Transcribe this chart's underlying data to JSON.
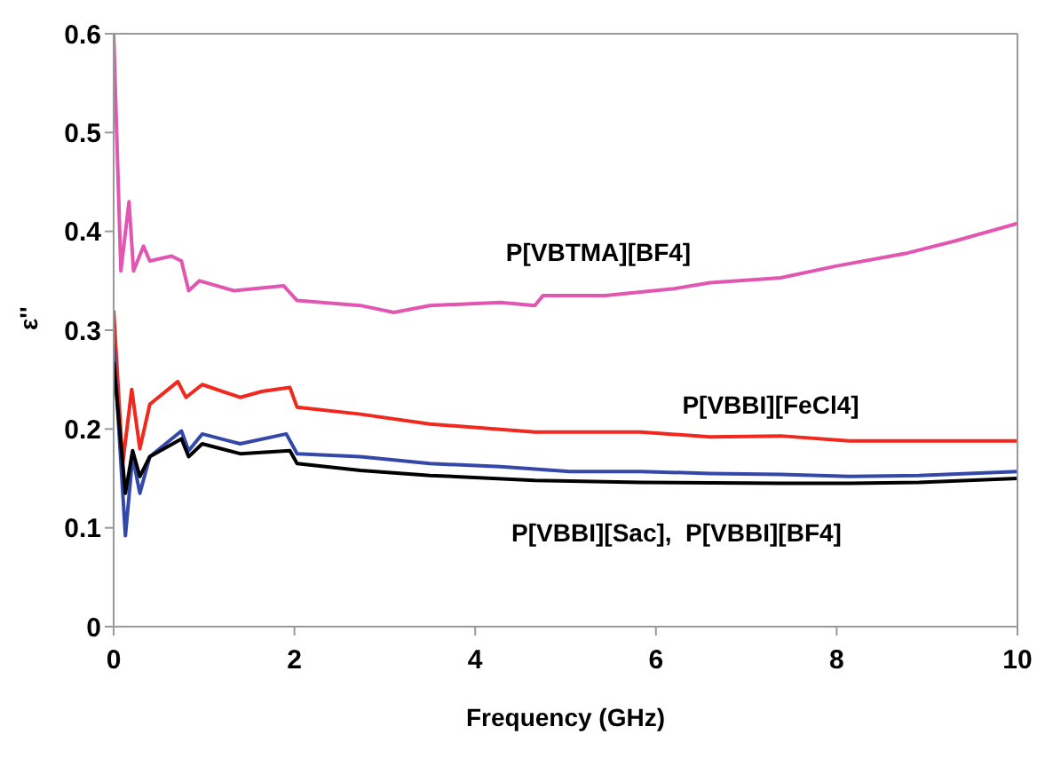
{
  "chart_data": {
    "type": "line",
    "xlabel": "Frequency (GHz)",
    "ylabel": "ε''",
    "xlim": [
      0,
      10
    ],
    "xticks": [
      0,
      2,
      4,
      6,
      8,
      10
    ],
    "ylim": [
      0,
      0.6
    ],
    "yticks": [
      0,
      0.1,
      0.2,
      0.3,
      0.4,
      0.5,
      0.6
    ],
    "grid": false,
    "legend": false,
    "marker": "none",
    "line_style": "solid",
    "series": [
      {
        "color": "#e056b0",
        "x": [
          0,
          0.08,
          0.17,
          0.22,
          0.33,
          0.4,
          0.64,
          0.75,
          0.83,
          0.95,
          1.33,
          1.88,
          2.03,
          2.73,
          3.1,
          3.5,
          4.28,
          4.66,
          4.75,
          5.44,
          6.2,
          6.6,
          7.38,
          8,
          8.78,
          9.3,
          10
        ],
        "values": [
          0.6,
          0.36,
          0.43,
          0.36,
          0.385,
          0.37,
          0.375,
          0.37,
          0.34,
          0.35,
          0.34,
          0.345,
          0.33,
          0.325,
          0.318,
          0.325,
          0.328,
          0.325,
          0.335,
          0.335,
          0.342,
          0.348,
          0.353,
          0.365,
          0.378,
          0.39,
          0.408
        ]
      },
      {
        "color": "#f0281e",
        "x": [
          0,
          0.1,
          0.2,
          0.29,
          0.4,
          0.71,
          0.8,
          0.98,
          1.4,
          1.64,
          1.95,
          2.03,
          2.73,
          3.5,
          4.66,
          5.83,
          6.6,
          7.38,
          8.14,
          8.91,
          10
        ],
        "values": [
          0.32,
          0.165,
          0.24,
          0.18,
          0.225,
          0.248,
          0.232,
          0.245,
          0.232,
          0.238,
          0.242,
          0.222,
          0.215,
          0.205,
          0.197,
          0.197,
          0.192,
          0.193,
          0.188,
          0.188,
          0.188
        ]
      },
      {
        "color": "#3348a8",
        "x": [
          0,
          0.13,
          0.21,
          0.29,
          0.4,
          0.75,
          0.83,
          0.98,
          1.4,
          1.91,
          2.03,
          2.73,
          3.5,
          4.28,
          5.05,
          5.83,
          6.6,
          7.38,
          8.14,
          8.91,
          10
        ],
        "values": [
          0.285,
          0.092,
          0.172,
          0.135,
          0.172,
          0.198,
          0.178,
          0.195,
          0.185,
          0.195,
          0.175,
          0.172,
          0.165,
          0.162,
          0.157,
          0.157,
          0.155,
          0.154,
          0.152,
          0.153,
          0.157
        ]
      },
      {
        "color": "#000000",
        "x": [
          0,
          0.13,
          0.21,
          0.29,
          0.4,
          0.75,
          0.83,
          0.98,
          1.4,
          1.95,
          2.03,
          2.73,
          3.5,
          4.66,
          5.83,
          7.38,
          8.14,
          8.91,
          10
        ],
        "values": [
          0.268,
          0.135,
          0.178,
          0.152,
          0.172,
          0.19,
          0.172,
          0.185,
          0.175,
          0.178,
          0.165,
          0.158,
          0.153,
          0.148,
          0.146,
          0.145,
          0.145,
          0.146,
          0.15
        ]
      }
    ],
    "annotations": [
      "P[VBTMA][BF4]",
      "P[VBBI][FeCl4]",
      "P[VBBI][Sac],  P[VBBI][BF4]"
    ]
  }
}
